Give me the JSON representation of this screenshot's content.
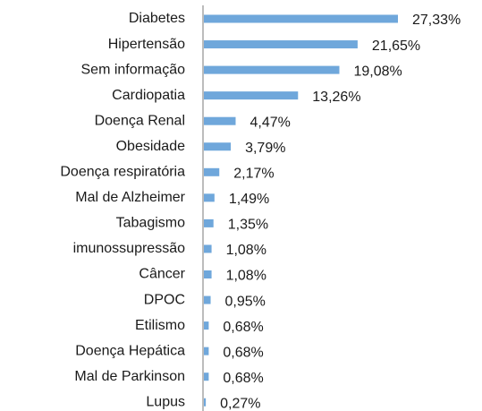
{
  "chart_data": {
    "type": "bar",
    "orientation": "horizontal",
    "color": "#6fa7db",
    "categories": [
      "Diabetes",
      "Hipertensão",
      "Sem informação",
      "Cardiopatia",
      "Doença Renal",
      "Obesidade",
      "Doença respiratória",
      "Mal de Alzheimer",
      "Tabagismo",
      "imunossupressão",
      "Câncer",
      "DPOC",
      "Etilismo",
      "Doença Hepática",
      "Mal de Parkinson",
      "Lupus"
    ],
    "values": [
      27.33,
      21.65,
      19.08,
      13.26,
      4.47,
      3.79,
      2.17,
      1.49,
      1.35,
      1.08,
      1.08,
      0.95,
      0.68,
      0.68,
      0.68,
      0.27
    ],
    "value_labels": [
      "27,33%",
      "21,65%",
      "19,08%",
      "13,26%",
      "4,47%",
      "3,79%",
      "2,17%",
      "1,49%",
      "1,35%",
      "1,08%",
      "1,08%",
      "0,95%",
      "0,68%",
      "0,68%",
      "0,68%",
      "0,27%"
    ]
  }
}
